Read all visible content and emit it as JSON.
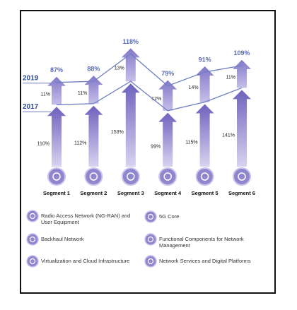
{
  "chart_data": {
    "type": "stacked-arrow",
    "categories": [
      "Segment 1",
      "Segment 2",
      "Segment 3",
      "Segment 4",
      "Segment 5",
      "Segment 6"
    ],
    "series": [
      {
        "name": "2017",
        "color": "#7468c0",
        "values": [
          110,
          112,
          153,
          99,
          115,
          141
        ],
        "value_labels": [
          "110%",
          "112%",
          "153%",
          "99%",
          "115%",
          "141%"
        ]
      },
      {
        "name": "2019",
        "color": "#8c82cc",
        "values": [
          11,
          11,
          13,
          12,
          14,
          11
        ],
        "value_labels": [
          "11%",
          "11%",
          "13%",
          "12%",
          "14%",
          "11%"
        ]
      }
    ],
    "top_values": [
      87,
      88,
      118,
      79,
      91,
      109
    ],
    "top_value_labels": [
      "87%",
      "88%",
      "118%",
      "79%",
      "91%",
      "109%"
    ]
  },
  "legend": {
    "items": [
      "Radio Access Network (NG-RAN) and User Equipment",
      "Backhaul Network",
      "Virtualization and Cloud Infrastructure",
      "5G Core",
      "Functional Components for Network Management",
      "Network Services and Digital Platforms"
    ]
  }
}
